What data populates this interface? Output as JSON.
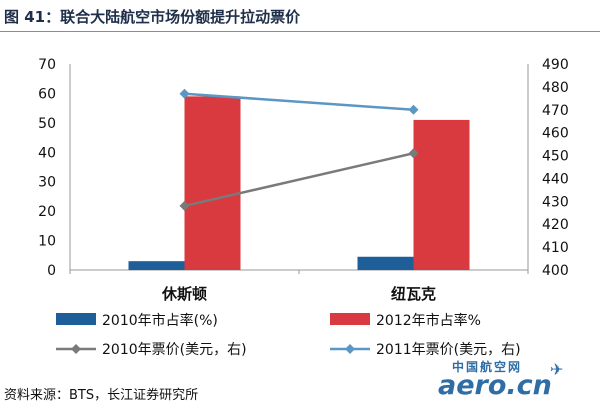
{
  "title": "图 41：联合大陆航空市场份额提升拉动票价",
  "source": "资料来源：BTS，长江证券研究所",
  "watermark": {
    "cn": "中国航空网",
    "en": "aero.cn"
  },
  "chart_data": {
    "type": "bar",
    "categories": [
      "休斯顿",
      "纽瓦克"
    ],
    "series": [
      {
        "name": "2010年市占率(%)",
        "kind": "bar",
        "axis": "left",
        "color": "#1f5f99",
        "values": [
          3,
          4.5
        ]
      },
      {
        "name": "2012年市占率%",
        "kind": "bar",
        "axis": "left",
        "color": "#d93a3f",
        "values": [
          59,
          51
        ]
      },
      {
        "name": "2010年票价(美元，右)",
        "kind": "line",
        "axis": "right",
        "color": "#7a7a7a",
        "values": [
          428,
          451
        ]
      },
      {
        "name": "2011年票价(美元，右)",
        "kind": "line",
        "axis": "right",
        "color": "#5b97c4",
        "values": [
          477,
          470
        ]
      }
    ],
    "y_left": {
      "min": 0,
      "max": 70,
      "ticks": [
        0,
        10,
        20,
        30,
        40,
        50,
        60,
        70
      ]
    },
    "y_right": {
      "min": 400,
      "max": 490,
      "ticks": [
        400,
        410,
        420,
        430,
        440,
        450,
        460,
        470,
        480,
        490
      ]
    },
    "grid": false,
    "legend": "bottom"
  }
}
